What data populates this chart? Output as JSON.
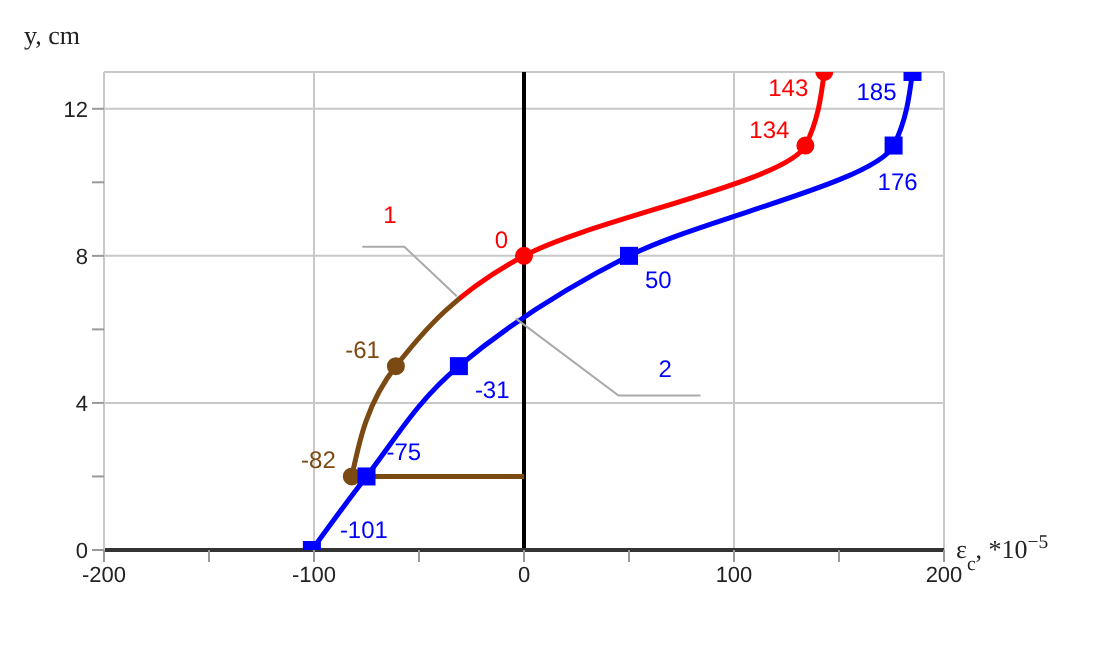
{
  "chart_data": {
    "type": "line",
    "xlabel": "ε$_{c}$, *10$^{−5}$",
    "ylabel": "y, cm",
    "xlim": [
      -200,
      200
    ],
    "xticks": [
      -200,
      {
        "value": -150,
        "label": null
      },
      -100,
      {
        "value": -50,
        "label": null
      },
      0,
      {
        "value": 50,
        "label": null
      },
      100,
      {
        "value": 150,
        "label": null
      },
      200
    ],
    "ylim": [
      0,
      13
    ],
    "yticks": [
      0,
      {
        "value": 2,
        "label": null
      },
      4,
      {
        "value": 6,
        "label": null
      },
      8,
      {
        "value": 10,
        "label": null
      },
      12
    ],
    "grid": true,
    "ref_lines": [
      {
        "axis": "x",
        "value": 0,
        "color": "#000000"
      }
    ],
    "series": [
      {
        "name": "1",
        "color": "#ff0000",
        "marker": "circle",
        "x": [
          -82,
          -61,
          0,
          134,
          143
        ],
        "values": [
          2,
          5,
          8,
          11,
          13
        ],
        "colors": [
          "#7b4a12",
          "#7b4a12",
          "#ff0000",
          "#ff0000",
          "#ff0000"
        ]
      },
      {
        "name": "2",
        "color": "#0000ff",
        "marker": "square",
        "x": [
          -101,
          -75,
          -31,
          50,
          176,
          185
        ],
        "values": [
          0,
          2,
          5,
          8,
          11,
          13
        ]
      },
      {
        "color": "#7b4a12",
        "marker": "none",
        "x": [
          -82,
          0
        ],
        "values": [
          2,
          2
        ]
      }
    ],
    "annotations": [
      {
        "text": "-82",
        "x": -82,
        "y": 2
      },
      {
        "text": "-61",
        "x": -61,
        "y": 5
      },
      {
        "text": "0",
        "x": 0,
        "y": 8
      },
      {
        "text": "134",
        "x": 134,
        "y": 11
      },
      {
        "text": "143",
        "x": 143,
        "y": 13
      },
      {
        "text": "-101",
        "x": -101,
        "y": 0
      },
      {
        "text": "-75",
        "x": -75,
        "y": 2
      },
      {
        "text": "-31",
        "x": -31,
        "y": 5
      },
      {
        "text": "50",
        "x": 50,
        "y": 8
      },
      {
        "text": "176",
        "x": 176,
        "y": 11
      },
      {
        "text": "185",
        "x": 185,
        "y": 13
      }
    ]
  }
}
